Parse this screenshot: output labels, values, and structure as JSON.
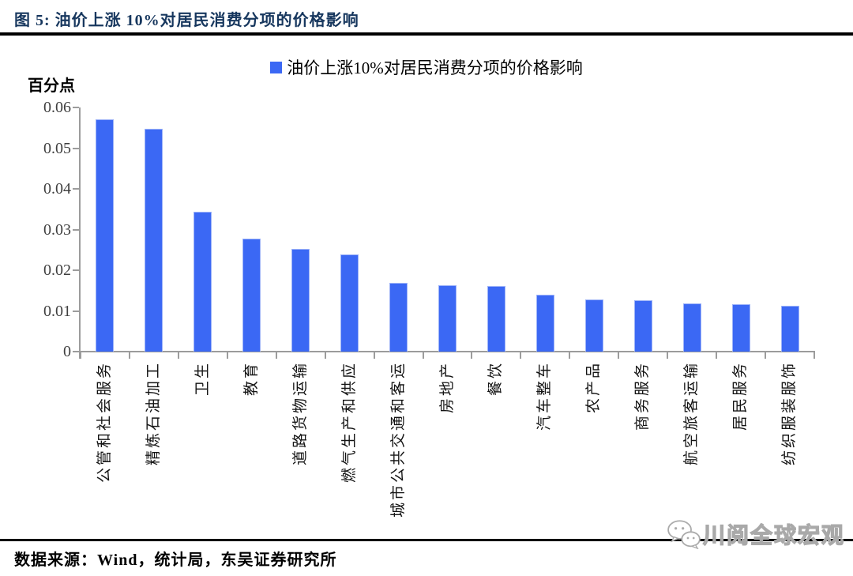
{
  "figure": {
    "title": "图 5:  油价上涨 10%对居民消费分项的价格影响"
  },
  "chart_data": {
    "type": "bar",
    "title": "油价上涨10%对居民消费分项的价格影响",
    "ylabel": "百分点",
    "xlabel": "",
    "categories": [
      "公管和社会服务",
      "精炼石油加工",
      "卫生",
      "教育",
      "道路货物运输",
      "燃气生产和供应",
      "城市公共交通和客运",
      "房地产",
      "餐饮",
      "汽车整车",
      "农产品",
      "商务服务",
      "航空旅客运输",
      "居民服务",
      "纺织服装服饰"
    ],
    "values": [
      0.057,
      0.0547,
      0.0343,
      0.0278,
      0.0252,
      0.0238,
      0.0168,
      0.0164,
      0.0161,
      0.0139,
      0.0128,
      0.0126,
      0.0119,
      0.0116,
      0.0112
    ],
    "ylim": [
      0,
      0.06
    ],
    "yticks": [
      0,
      0.01,
      0.02,
      0.03,
      0.04,
      0.05,
      0.06
    ],
    "ytick_labels": [
      "0",
      "0.01",
      "0.02",
      "0.03",
      "0.04",
      "0.05",
      "0.06"
    ],
    "grid": false,
    "legend_position": "top",
    "legend": [
      {
        "label": "油价上涨10%对居民消费分项的价格影响",
        "color": "#3B68F4"
      }
    ]
  },
  "footer": {
    "source": "数据来源：Wind，统计局，东吴证券研究所"
  },
  "watermark": {
    "text": "川阅全球宏观",
    "icon": "wechat-icon"
  },
  "colors": {
    "bar": "#3B68F4",
    "bar_border": "#9DB3F8",
    "title": "#17375E",
    "axis": "#9C9C9C",
    "watermark_stroke": "#A9A9A9"
  }
}
